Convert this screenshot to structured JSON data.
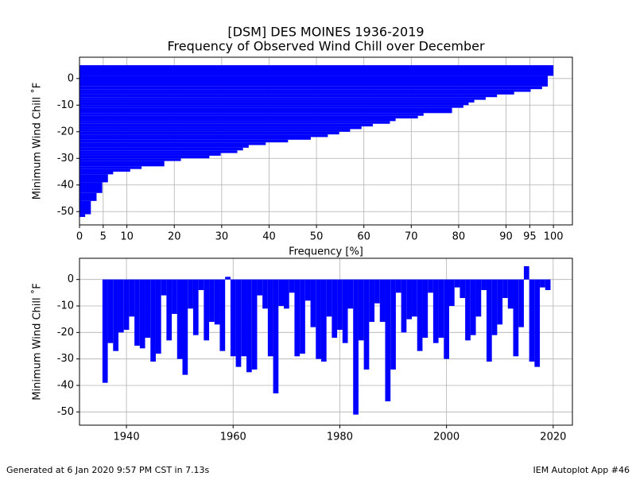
{
  "chart_data": [
    {
      "type": "barh",
      "title": "[DSM] DES MOINES 1936-2019",
      "subtitle": "Frequency of Observed Wind Chill over December",
      "xlabel": "Frequency [%]",
      "ylabel": "Minimum Wind Chill ˚F",
      "color": "#0000ff",
      "grid": true,
      "y": [
        -51,
        -46,
        -43,
        -39,
        -36,
        -35,
        -34,
        -33,
        -31,
        -30,
        -29,
        -28,
        -27,
        -26,
        -25,
        -24,
        -23,
        -22,
        -21,
        -20,
        -19,
        -18,
        -17,
        -16,
        -15,
        -14,
        -13,
        -11,
        -10,
        -9,
        -8,
        -7,
        -6,
        -5,
        -4,
        -3,
        1,
        5
      ],
      "values": [
        1.2,
        2.4,
        3.6,
        4.8,
        6.0,
        7.1,
        10.7,
        13.1,
        17.9,
        21.4,
        27.4,
        29.8,
        33.3,
        34.5,
        35.7,
        39.3,
        44.0,
        48.8,
        52.4,
        54.8,
        57.1,
        59.5,
        61.9,
        65.5,
        66.7,
        71.4,
        72.6,
        78.6,
        81.0,
        82.1,
        83.3,
        85.7,
        88.1,
        91.7,
        95.2,
        97.6,
        98.8,
        100
      ],
      "xlim": [
        0,
        104
      ],
      "xticks": [
        0,
        5,
        10,
        20,
        30,
        40,
        50,
        60,
        70,
        80,
        90,
        95,
        100
      ],
      "ylim": [
        -55,
        8
      ],
      "yticks": [
        -50,
        -40,
        -30,
        -20,
        -10,
        0
      ]
    },
    {
      "type": "bar",
      "ylabel": "Minimum Wind Chill ˚F",
      "color": "#0000ff",
      "grid": true,
      "x": [
        1936,
        1937,
        1938,
        1939,
        1940,
        1941,
        1942,
        1943,
        1944,
        1945,
        1946,
        1947,
        1948,
        1949,
        1950,
        1951,
        1952,
        1953,
        1954,
        1955,
        1956,
        1957,
        1958,
        1959,
        1960,
        1961,
        1962,
        1963,
        1964,
        1965,
        1966,
        1967,
        1968,
        1969,
        1970,
        1971,
        1972,
        1973,
        1974,
        1975,
        1976,
        1977,
        1978,
        1979,
        1980,
        1981,
        1982,
        1983,
        1984,
        1985,
        1986,
        1987,
        1988,
        1989,
        1990,
        1991,
        1992,
        1993,
        1994,
        1995,
        1996,
        1997,
        1998,
        1999,
        2000,
        2001,
        2002,
        2003,
        2004,
        2005,
        2006,
        2007,
        2008,
        2009,
        2010,
        2011,
        2012,
        2013,
        2014,
        2015,
        2016,
        2017,
        2018,
        2019
      ],
      "values": [
        -39,
        -24,
        -27,
        -20,
        -19,
        -14,
        -25,
        -26,
        -22,
        -31,
        -28,
        -6,
        -23,
        -13,
        -30,
        -36,
        -11,
        -21,
        -4,
        -23,
        -16,
        -17,
        -27,
        1,
        -29,
        -33,
        -29,
        -35,
        -34,
        -6,
        -11,
        -29,
        -43,
        -10,
        -11,
        -5,
        -29,
        -28,
        -8,
        -18,
        -30,
        -31,
        -14,
        -22,
        -19,
        -24,
        -11,
        -51,
        -23,
        -34,
        -16,
        -9,
        -16,
        -46,
        -34,
        -5,
        -20,
        -15,
        -14,
        -27,
        -22,
        -5,
        -24,
        -22,
        -30,
        -10,
        -3,
        -7,
        -23,
        -21,
        -14,
        -4,
        -31,
        -21,
        -17,
        -7,
        -11,
        -29,
        -18,
        5,
        -31,
        -33,
        -3,
        -4
      ],
      "xlim": [
        1931.2,
        2023.6
      ],
      "xticks": [
        1940,
        1960,
        1980,
        2000,
        2020
      ],
      "ylim": [
        -55,
        8
      ],
      "yticks": [
        -50,
        -40,
        -30,
        -20,
        -10,
        0
      ]
    }
  ],
  "footer_left": "Generated at 6 Jan 2020 9:57 PM CST in 7.13s",
  "footer_right": "IEM Autoplot App #46"
}
